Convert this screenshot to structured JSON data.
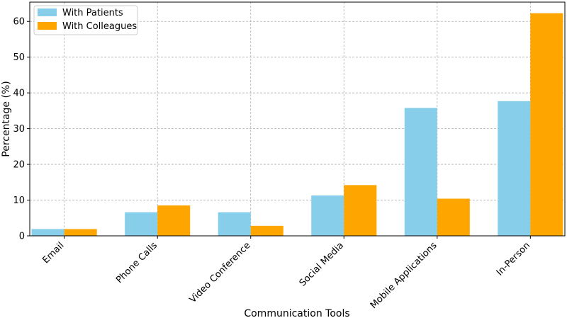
{
  "chart_data": {
    "type": "bar",
    "title": "",
    "xlabel": "Communication Tools",
    "ylabel": "Percentage (%)",
    "categories": [
      "Email",
      "Phone Calls",
      "Video Conference",
      "Social Media",
      "Mobile Applications",
      "In-Person"
    ],
    "series": [
      {
        "name": "With Patients",
        "color": "#87ceeb",
        "values": [
          1.9,
          6.6,
          6.6,
          11.3,
          35.8,
          37.7
        ]
      },
      {
        "name": "With Colleagues",
        "color": "#ffa500",
        "values": [
          1.9,
          8.5,
          2.8,
          14.2,
          10.4,
          62.3
        ]
      }
    ],
    "ylim": [
      0,
      65.4
    ],
    "yticks": [
      0,
      10,
      20,
      30,
      40,
      50,
      60
    ],
    "grid": true,
    "legend_position": "top-left"
  }
}
